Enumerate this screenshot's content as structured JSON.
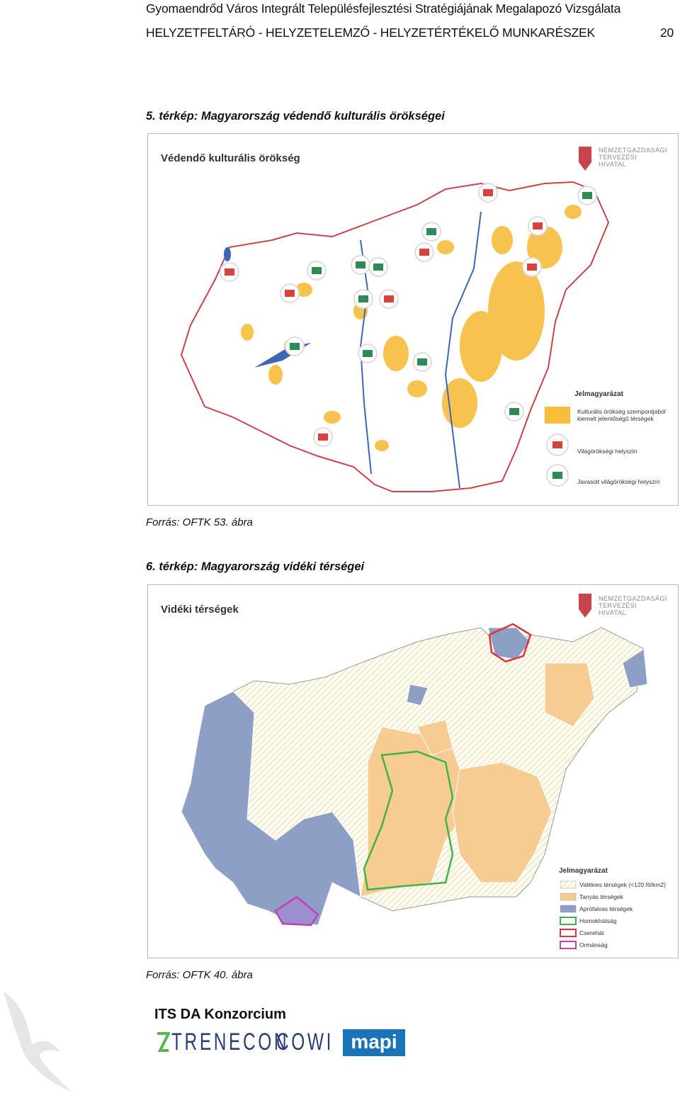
{
  "header": {
    "title": "Gyomaendrőd Város Integrált Településfejlesztési Stratégiájának Megalapozó Vizsgálata",
    "subtitle": "HELYZETFELTÁRÓ - HELYZETELEMZŐ - HELYZETÉRTÉKELŐ MUNKARÉSZEK",
    "page_number": "20"
  },
  "figures": [
    {
      "caption": "5. térkép: Magyarország védendő kulturális örökségei",
      "map_title": "Védendő kulturális örökség",
      "logo": [
        "NEMZETGAZDASÁGI",
        "TERVEZÉSI",
        "HIVATAL"
      ],
      "legend_title": "Jelmagyarázat",
      "legend": [
        "Kulturális örökség szempontjából kiemelt jelentőségű térségek",
        "Világörökségi helyszín",
        "Javasolt világörökségi helyszín"
      ],
      "source": "Forrás: OFTK 53. ábra"
    },
    {
      "caption": "6. térkép: Magyarország vidéki térségei",
      "map_title": "Vidéki térségek",
      "logo": [
        "NEMZETGAZDASÁGI",
        "TERVEZÉSI",
        "HIVATAL"
      ],
      "legend_title": "Jelmagyarázat",
      "legend": [
        "Vidékies térségek (<120 fő/km2)",
        "Tanyás térségek",
        "Aprófalvas térségek",
        "Homokhátság",
        "Cserehát",
        "Ormánság"
      ],
      "source": "Forrás: OFTK 40. ábra"
    }
  ],
  "footer": {
    "consortium": "ITS DA Konzorcium",
    "logos": [
      "TRENECON",
      "COWI",
      "mapi"
    ]
  }
}
